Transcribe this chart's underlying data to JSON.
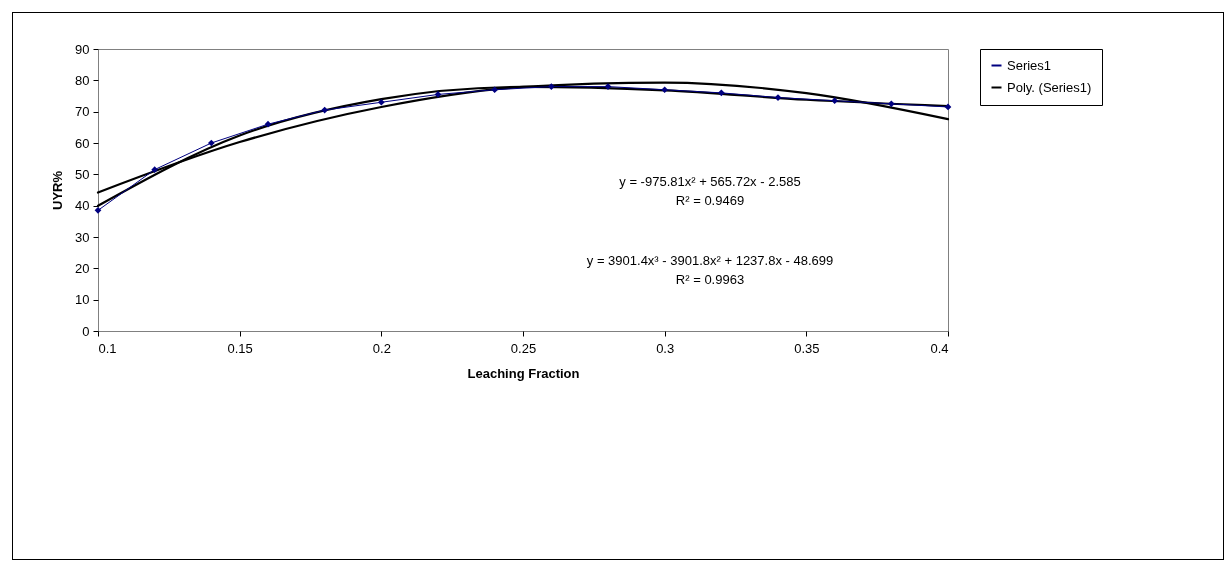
{
  "chart_data": {
    "type": "line",
    "xlabel": "Leaching Fraction",
    "ylabel": "UYR%",
    "xlim": [
      0.1,
      0.4
    ],
    "ylim": [
      0,
      90
    ],
    "xticks": [
      0.1,
      0.15,
      0.2,
      0.25,
      0.3,
      0.35,
      0.4
    ],
    "yticks": [
      0,
      10,
      20,
      30,
      40,
      50,
      60,
      70,
      80,
      90
    ],
    "grid": false,
    "legend": "right",
    "series": [
      {
        "name": "Series1",
        "color": "#000080",
        "marker": "diamond",
        "x": [
          0.1,
          0.12,
          0.14,
          0.16,
          0.18,
          0.2,
          0.22,
          0.24,
          0.26,
          0.28,
          0.3,
          0.32,
          0.34,
          0.36,
          0.38,
          0.4
        ],
        "values": [
          38.5,
          51.5,
          60,
          66,
          70.5,
          73,
          75.5,
          77,
          78,
          78,
          77,
          76,
          74.5,
          73.5,
          72.5,
          71.5
        ]
      },
      {
        "name": "Poly. (Series1)",
        "color": "#000000",
        "marker": "none",
        "x": [
          0.1,
          0.15,
          0.2,
          0.25,
          0.3,
          0.35,
          0.4
        ],
        "values": [
          44.2,
          60.3,
          71.5,
          77.9,
          79.3,
          75.9,
          67.6
        ]
      },
      {
        "color": "#000000",
        "marker": "none",
        "x": [
          0.1,
          0.15,
          0.2,
          0.25,
          0.3,
          0.35,
          0.4
        ],
        "values": [
          40,
          62.4,
          74,
          77.9,
          76.8,
          73.8,
          71.8
        ]
      }
    ],
    "annotations": [
      "y = -975.81x² + 565.72x - 2.585",
      "R² = 0.9469",
      "y = 3901.4x³ - 3901.8x² + 1237.8x - 48.699",
      "R² = 0.9963"
    ]
  }
}
